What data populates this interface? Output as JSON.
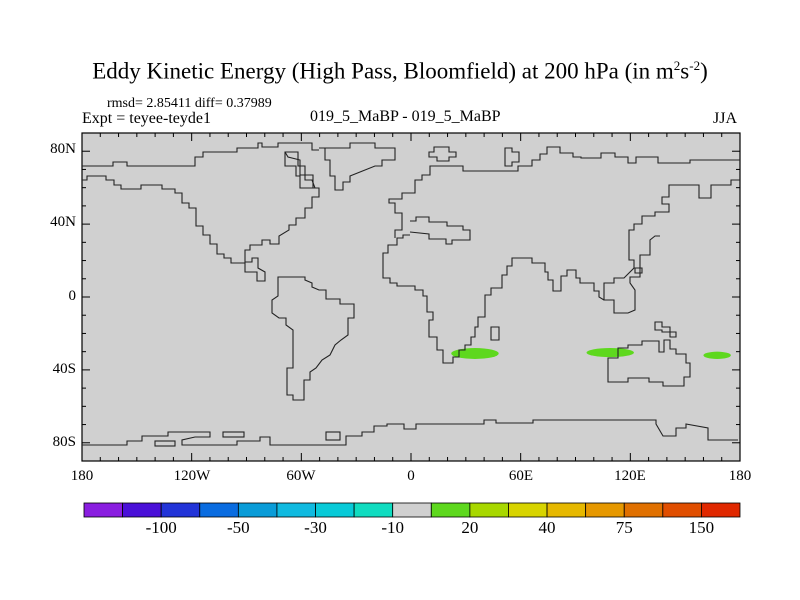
{
  "header": {
    "title_main": "Eddy Kinetic Energy (High Pass, Bloomfield) at 200 hPa (in m",
    "title_sup1": "2",
    "title_mid": "s",
    "title_sup2": "-2",
    "title_end": ")",
    "stats": "rmsd= 2.85411 diff= 0.37989",
    "experiment": "Expt = teyee-teyde1",
    "comparison": "019_5_MaBP - 019_5_MaBP",
    "season": "JJA"
  },
  "chart_data": {
    "type": "heatmap",
    "subtype": "global map difference field (cylindrical equidistant)",
    "title": "Eddy Kinetic Energy (High Pass, Bloomfield) at 200 hPa (in m2s-2)",
    "xlim": [
      -180,
      180
    ],
    "ylim": [
      -90,
      90
    ],
    "x_ticks": [
      "180",
      "120W",
      "60W",
      "0",
      "60E",
      "120E",
      "180"
    ],
    "y_ticks": [
      "80N",
      "40N",
      "0",
      "40S",
      "80S"
    ],
    "background_value_bin": "-10 to 10",
    "anomalies": [
      {
        "bin": "10 to 20",
        "lon_range": [
          22,
          48
        ],
        "lat_range": [
          -28,
          -34
        ],
        "color": "#5ed81e"
      },
      {
        "bin": "10 to 20",
        "lon_range": [
          96,
          122
        ],
        "lat_range": [
          -28,
          -33
        ],
        "color": "#5ed81e"
      },
      {
        "bin": "10 to 20",
        "lon_range": [
          160,
          175
        ],
        "lat_range": [
          -30,
          -34
        ],
        "color": "#5ed81e"
      }
    ],
    "colorbar": {
      "colors": [
        "#8a1ee0",
        "#4a10d8",
        "#2234d8",
        "#0a6ce0",
        "#0a9cd8",
        "#10bae0",
        "#08cad8",
        "#10dcc0",
        "#d0d0d0",
        "#5ed81e",
        "#a8d800",
        "#d8d400",
        "#e6b800",
        "#e69800",
        "#e07000",
        "#e04e00",
        "#e02800"
      ],
      "labels": [
        "-100",
        "-50",
        "-30",
        "-10",
        "20",
        "40",
        "75",
        "150"
      ]
    }
  }
}
